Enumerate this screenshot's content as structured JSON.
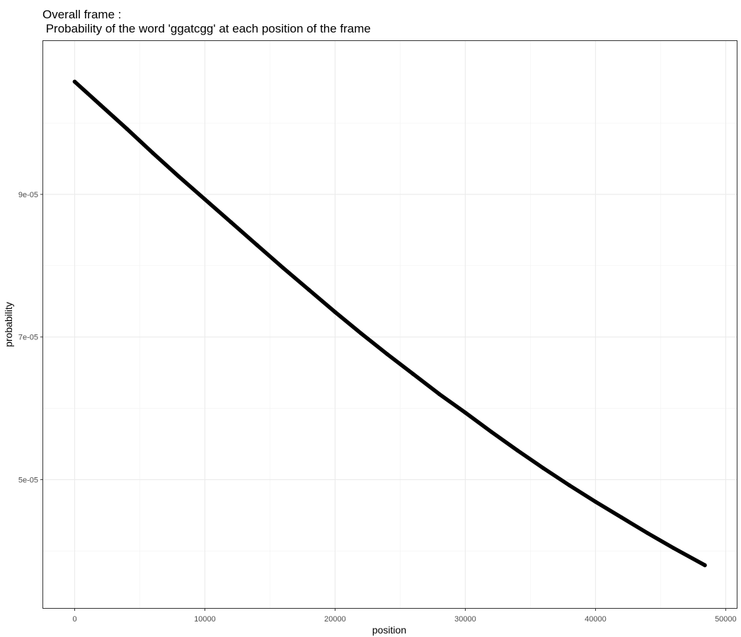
{
  "chart_data": {
    "type": "scatter",
    "title": "Overall frame :",
    "subtitle": " Probability of the word 'ggatcgg' at each position of the frame",
    "xlabel": "position",
    "ylabel": "probability",
    "xlim": [
      -2420,
      50850
    ],
    "ylim": [
      3.2e-05,
      0.0001115
    ],
    "x_ticks": [
      0,
      10000,
      20000,
      30000,
      40000,
      50000
    ],
    "x_tick_labels": [
      "0",
      "10000",
      "20000",
      "30000",
      "40000",
      "50000"
    ],
    "y_ticks": [
      5e-05,
      7e-05,
      9e-05
    ],
    "y_tick_labels": [
      "5e-05",
      "7e-05",
      "9e-05"
    ],
    "grid": true,
    "legend": "none",
    "series": [
      {
        "color": "#000000",
        "x": [
          0,
          2000,
          4000,
          6000,
          8000,
          10000,
          12000,
          14000,
          16000,
          18000,
          20000,
          22000,
          24000,
          26000,
          28000,
          30000,
          32000,
          34000,
          36000,
          38000,
          40000,
          42000,
          44000,
          46000,
          48400
        ],
        "y": [
          0.0001058,
          0.0001025,
          9.92e-05,
          9.58e-05,
          9.25e-05,
          8.93e-05,
          8.61e-05,
          8.29e-05,
          7.97e-05,
          7.66e-05,
          7.35e-05,
          7.05e-05,
          6.76e-05,
          6.48e-05,
          6.2e-05,
          5.94e-05,
          5.67e-05,
          5.41e-05,
          5.16e-05,
          4.92e-05,
          4.69e-05,
          4.47e-05,
          4.25e-05,
          4.04e-05,
          3.8e-05
        ]
      }
    ]
  }
}
